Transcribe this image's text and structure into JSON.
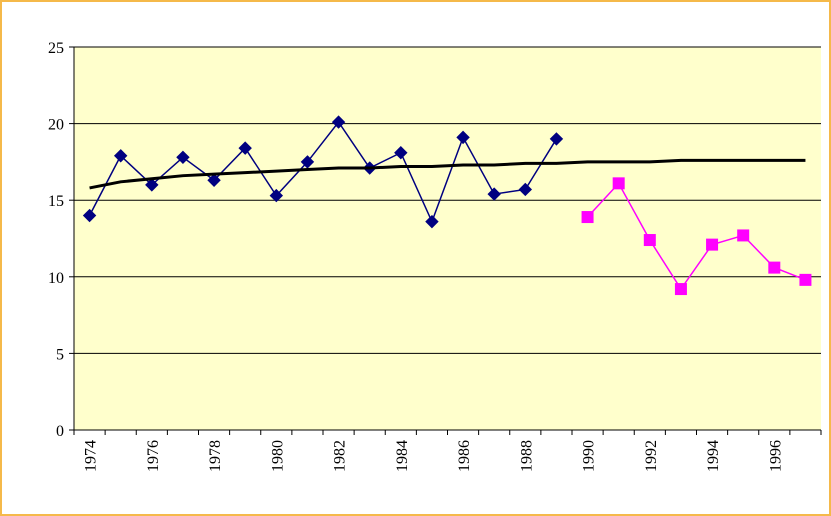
{
  "chart_data": {
    "type": "line",
    "categories": [
      "1974",
      null,
      "1976",
      null,
      "1978",
      null,
      "1980",
      null,
      "1982",
      null,
      "1984",
      null,
      "1986",
      null,
      "1988",
      null,
      "1990",
      null,
      "1992",
      null,
      "1994",
      null,
      "1996",
      null
    ],
    "series": [
      {
        "color": "#000080",
        "marker": "diamond",
        "values": [
          14.0,
          17.9,
          16.0,
          17.8,
          16.3,
          18.4,
          15.3,
          17.5,
          20.1,
          17.1,
          18.1,
          13.6,
          19.1,
          15.4,
          15.7,
          19.0,
          null,
          null,
          null,
          null,
          null,
          null,
          null,
          null
        ]
      },
      {
        "color": "#ff00ff",
        "marker": "square",
        "values": [
          null,
          null,
          null,
          null,
          null,
          null,
          null,
          null,
          null,
          null,
          null,
          null,
          null,
          null,
          null,
          null,
          13.9,
          16.1,
          12.4,
          9.2,
          12.1,
          12.7,
          10.6,
          9.8
        ]
      },
      {
        "color": "#000000",
        "marker": "none",
        "values": [
          15.8,
          16.2,
          16.4,
          16.6,
          16.7,
          16.8,
          16.9,
          17.0,
          17.1,
          17.1,
          17.2,
          17.2,
          17.3,
          17.3,
          17.4,
          17.4,
          17.5,
          17.5,
          17.5,
          17.6,
          17.6,
          17.6,
          17.6,
          17.6
        ]
      }
    ],
    "ylim": [
      0,
      25
    ],
    "yticks": [
      0,
      5,
      10,
      15,
      20,
      25
    ],
    "grid": true
  }
}
